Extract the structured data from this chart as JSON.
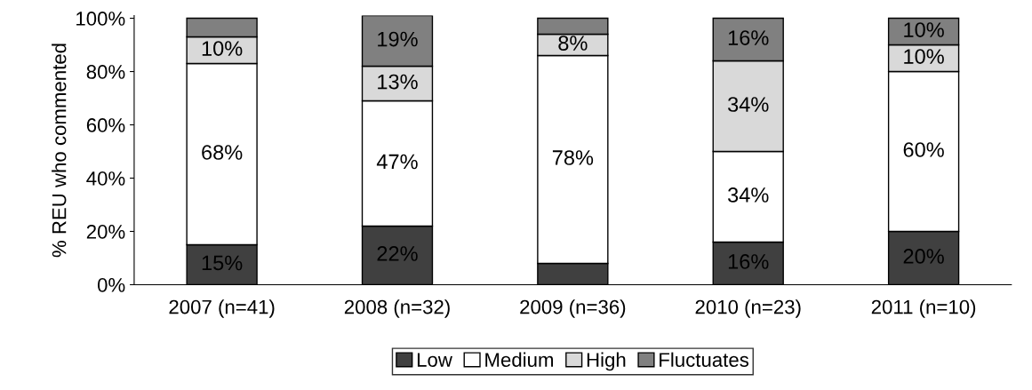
{
  "chart_data": {
    "type": "bar",
    "stacked": true,
    "ylabel": "% REU who commented",
    "categories": [
      "2007 (n=41)",
      "2008 (n=32)",
      "2009 (n=36)",
      "2010 (n=23)",
      "2011 (n=10)"
    ],
    "series": [
      {
        "name": "Low",
        "color": "#404040",
        "values": [
          15,
          22,
          8,
          16,
          20
        ],
        "value_labels": [
          "15%",
          "22%",
          null,
          "16%",
          "20%"
        ]
      },
      {
        "name": "Medium",
        "color": "#ffffff",
        "values": [
          68,
          47,
          78,
          34,
          60
        ],
        "value_labels": [
          "68%",
          "47%",
          "78%",
          "34%",
          "60%"
        ]
      },
      {
        "name": "High",
        "color": "#d9d9d9",
        "values": [
          10,
          13,
          8,
          34,
          10
        ],
        "value_labels": [
          "10%",
          "13%",
          "8%",
          "34%",
          "10%"
        ]
      },
      {
        "name": "Fluctuates",
        "color": "#808080",
        "values": [
          7,
          19,
          6,
          16,
          10
        ],
        "value_labels": [
          null,
          "19%",
          null,
          "16%",
          "10%"
        ]
      }
    ],
    "ylim": [
      0,
      101
    ],
    "yticks": [
      {
        "value": 0,
        "label": "0%"
      },
      {
        "value": 20,
        "label": "20%"
      },
      {
        "value": 40,
        "label": "40%"
      },
      {
        "value": 60,
        "label": "60%"
      },
      {
        "value": 80,
        "label": "80%"
      },
      {
        "value": 100,
        "label": "100%"
      }
    ],
    "grid": false,
    "legend": "bottom"
  }
}
